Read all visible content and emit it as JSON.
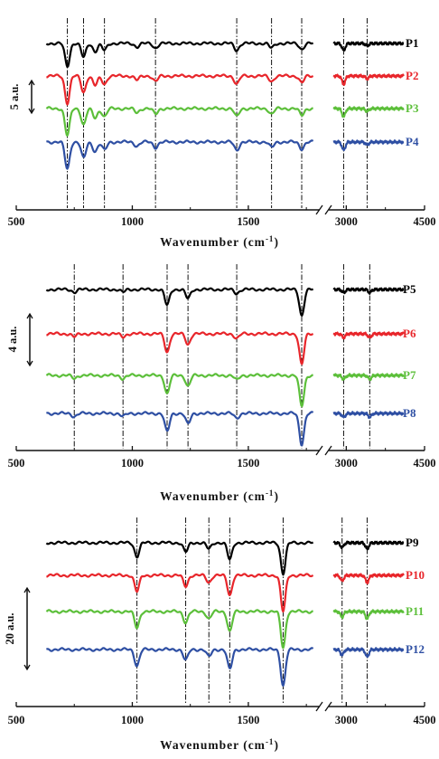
{
  "chart_data": [
    {
      "type": "line",
      "panel": "top",
      "xlabel": "Wavenumber",
      "xlabel_unit": "(cm-1)",
      "x_ticks": [
        "500",
        "1000",
        "1500",
        "3000",
        "4500"
      ],
      "axis_break": true,
      "scale_bar_label": "5 a.u.",
      "series": [
        {
          "name": "P1",
          "color": "#000000",
          "offset": 0
        },
        {
          "name": "P2",
          "color": "#e8262b",
          "offset": 1
        },
        {
          "name": "P3",
          "color": "#5cbf3a",
          "offset": 2
        },
        {
          "name": "P4",
          "color": "#2e4fa3",
          "offset": 3
        }
      ],
      "reference_lines_cm1": [
        720,
        790,
        880,
        1100,
        1450,
        1600,
        1730,
        2950,
        3400
      ],
      "bands": [
        {
          "x": 720,
          "depth": 1.0
        },
        {
          "x": 790,
          "depth": 0.6
        },
        {
          "x": 840,
          "depth": 0.35
        },
        {
          "x": 880,
          "depth": 0.3
        },
        {
          "x": 1020,
          "depth": 0.15
        },
        {
          "x": 1100,
          "depth": 0.2
        },
        {
          "x": 1450,
          "depth": 0.3
        },
        {
          "x": 1600,
          "depth": 0.2
        },
        {
          "x": 1730,
          "depth": 0.25
        },
        {
          "x": 2950,
          "depth": 0.3
        },
        {
          "x": 3400,
          "depth": 0.1
        }
      ]
    },
    {
      "type": "line",
      "panel": "middle",
      "xlabel": "Wavenumber",
      "xlabel_unit": "(cm-1)",
      "x_ticks": [
        "500",
        "1000",
        "1500",
        "3000",
        "4500"
      ],
      "axis_break": true,
      "scale_bar_label": "4 a.u.",
      "series": [
        {
          "name": "P5",
          "color": "#000000",
          "offset": 0
        },
        {
          "name": "P6",
          "color": "#e8262b",
          "offset": 1
        },
        {
          "name": "P7",
          "color": "#5cbf3a",
          "offset": 2
        },
        {
          "name": "P8",
          "color": "#2e4fa3",
          "offset": 3
        }
      ],
      "reference_lines_cm1": [
        750,
        960,
        1150,
        1240,
        1450,
        1730,
        2950,
        3450
      ],
      "bands": [
        {
          "x": 750,
          "depth": 0.1
        },
        {
          "x": 960,
          "depth": 0.1
        },
        {
          "x": 1150,
          "depth": 0.6
        },
        {
          "x": 1240,
          "depth": 0.35
        },
        {
          "x": 1450,
          "depth": 0.15
        },
        {
          "x": 1730,
          "depth": 1.0
        },
        {
          "x": 2950,
          "depth": 0.12
        },
        {
          "x": 3450,
          "depth": 0.12
        }
      ]
    },
    {
      "type": "line",
      "panel": "bottom",
      "xlabel": "Wavenumber",
      "xlabel_unit": "(cm-1)",
      "x_ticks": [
        "500",
        "1000",
        "1500",
        "3000",
        "4500"
      ],
      "axis_break": true,
      "scale_bar_label": "20 a.u.",
      "series": [
        {
          "name": "P9",
          "color": "#000000",
          "offset": 0
        },
        {
          "name": "P10",
          "color": "#e8262b",
          "offset": 1
        },
        {
          "name": "P11",
          "color": "#5cbf3a",
          "offset": 2
        },
        {
          "name": "P12",
          "color": "#2e4fa3",
          "offset": 3
        }
      ],
      "reference_lines_cm1": [
        1020,
        1230,
        1330,
        1420,
        1650,
        2920,
        3400
      ],
      "bands": [
        {
          "x": 1020,
          "depth": 0.45
        },
        {
          "x": 1230,
          "depth": 0.3
        },
        {
          "x": 1330,
          "depth": 0.2
        },
        {
          "x": 1420,
          "depth": 0.55
        },
        {
          "x": 1650,
          "depth": 1.0
        },
        {
          "x": 2920,
          "depth": 0.15
        },
        {
          "x": 3400,
          "depth": 0.2
        }
      ]
    }
  ]
}
